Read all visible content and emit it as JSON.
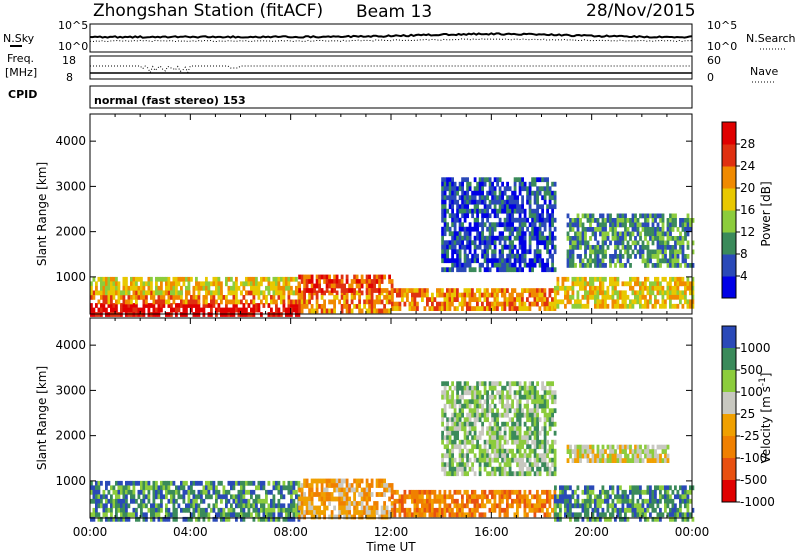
{
  "header": {
    "station": "Zhongshan Station (fitACF)",
    "beam": "Beam 13",
    "date": "28/Nov/2015"
  },
  "mini_panels": {
    "nsky_label": "N.Sky",
    "nsky_ticks": [
      "10^5",
      "10^0"
    ],
    "nsearch_label": "N.Search",
    "nsearch_ticks": [
      "10^5",
      "10^0"
    ],
    "freq_label_line1": "Freq.",
    "freq_label_line2": "[MHz]",
    "freq_ticks": [
      "18",
      "8"
    ],
    "nave_label": "Nave",
    "nave_ticks": [
      "60",
      "0"
    ],
    "cpid_label": "CPID",
    "cpid_text": "normal (fast stereo) 153"
  },
  "chart_data": [
    {
      "type": "heatmap",
      "panel": "power",
      "ylabel": "Slant Range [km]",
      "y_ticks": [
        1000,
        2000,
        3000,
        4000
      ],
      "ylim": [
        180,
        4600
      ],
      "x_ticks": [
        "00:00",
        "04:00",
        "08:00",
        "12:00",
        "16:00",
        "20:00",
        "00:00"
      ],
      "xlim_hours": [
        0,
        24
      ],
      "colorbar": {
        "label": "Power [dB]",
        "ticks": [
          "4",
          "8",
          "12",
          "16",
          "20",
          "24",
          "28"
        ],
        "colors": [
          "#0000e6",
          "#2a49b8",
          "#3a8a5a",
          "#8ccc3c",
          "#e8c800",
          "#f08a00",
          "#e03010",
          "#e00000"
        ]
      },
      "echo_regions": [
        {
          "t0": 0.0,
          "t1": 8.3,
          "r0": 200,
          "r1": 420,
          "level": 7
        },
        {
          "t0": 0.0,
          "t1": 8.3,
          "r0": 420,
          "r1": 700,
          "level": 5
        },
        {
          "t0": 0.0,
          "t1": 8.3,
          "r0": 700,
          "r1": 1000,
          "level": 4
        },
        {
          "t0": 8.3,
          "t1": 12.0,
          "r0": 250,
          "r1": 700,
          "level": 5
        },
        {
          "t0": 8.3,
          "t1": 12.0,
          "r0": 700,
          "r1": 1050,
          "level": 6
        },
        {
          "t0": 12.0,
          "t1": 18.5,
          "r0": 350,
          "r1": 750,
          "level": 5
        },
        {
          "t0": 14.0,
          "t1": 18.5,
          "r0": 1200,
          "r1": 3200,
          "level": 1
        },
        {
          "t0": 18.5,
          "t1": 24.0,
          "r0": 350,
          "r1": 1000,
          "level": 4
        },
        {
          "t0": 19.0,
          "t1": 24.0,
          "r0": 1300,
          "r1": 2400,
          "level": 2
        }
      ]
    },
    {
      "type": "heatmap",
      "panel": "velocity",
      "ylabel": "Slant Range [km]",
      "y_ticks": [
        1000,
        2000,
        3000,
        4000
      ],
      "ylim": [
        180,
        4600
      ],
      "x_ticks": [
        "00:00",
        "04:00",
        "08:00",
        "12:00",
        "16:00",
        "20:00",
        "00:00"
      ],
      "xlabel": "Time UT",
      "xlim_hours": [
        0,
        24
      ],
      "colorbar": {
        "label": "Velocity [m s^-1]",
        "ticks": [
          "1000",
          "500",
          "100",
          "25",
          "-25",
          "-100",
          "-500",
          "-1000"
        ],
        "colors": [
          "#2a49b8",
          "#3a8a5a",
          "#8ccc3c",
          "#c8c8c0",
          "#f0a000",
          "#f08000",
          "#e85010",
          "#e00000"
        ]
      },
      "echo_regions": [
        {
          "t0": 0.0,
          "t1": 8.3,
          "r0": 200,
          "r1": 1000,
          "level": 1
        },
        {
          "t0": 8.3,
          "t1": 12.0,
          "r0": 250,
          "r1": 1050,
          "level": 4
        },
        {
          "t0": 12.0,
          "t1": 18.5,
          "r0": 300,
          "r1": 800,
          "level": 5
        },
        {
          "t0": 14.0,
          "t1": 18.5,
          "r0": 1200,
          "r1": 3200,
          "level": 2
        },
        {
          "t0": 19.0,
          "t1": 23.0,
          "r0": 1500,
          "r1": 1800,
          "level": 3
        },
        {
          "t0": 18.5,
          "t1": 24.0,
          "r0": 200,
          "r1": 900,
          "level": 1
        }
      ]
    }
  ]
}
